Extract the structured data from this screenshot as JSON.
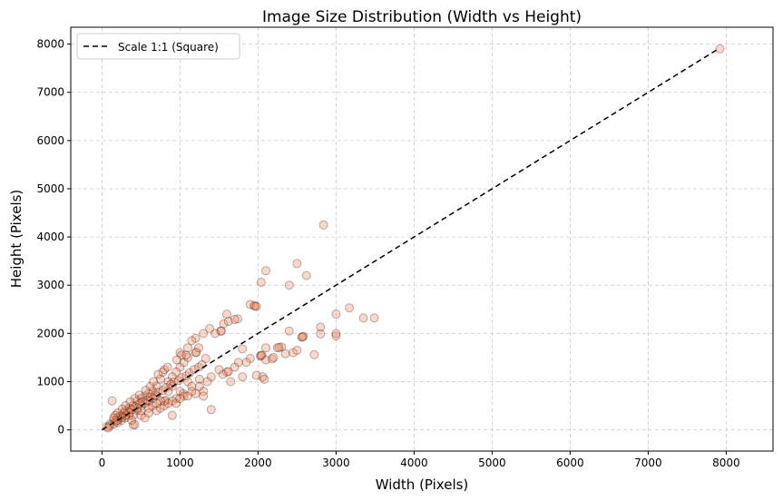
{
  "chart_data": {
    "type": "scatter",
    "title": "Image Size Distribution (Width vs Height)",
    "xlabel": "Width (Pixels)",
    "ylabel": "Height (Pixels)",
    "xlim": [
      -400,
      8600
    ],
    "ylim": [
      -440,
      8350
    ],
    "xticks": [
      0,
      1000,
      2000,
      3000,
      4000,
      5000,
      6000,
      7000,
      8000
    ],
    "yticks": [
      0,
      1000,
      2000,
      3000,
      4000,
      5000,
      6000,
      7000,
      8000
    ],
    "grid": true,
    "legend": {
      "placement": "top-left",
      "entries": [
        "Scale 1:1 (Square)"
      ]
    },
    "reference_line": {
      "name": "Scale 1:1 (Square)",
      "x": [
        0,
        7900
      ],
      "y": [
        0,
        7900
      ],
      "style": "dashed",
      "color": "#000000"
    },
    "point_color": "#FF7F50",
    "point_edge_color": "#000000",
    "point_alpha": 0.3,
    "points": [
      [
        7920,
        7900
      ],
      [
        2840,
        4250
      ],
      [
        2500,
        3450
      ],
      [
        2100,
        3300
      ],
      [
        2620,
        3200
      ],
      [
        2040,
        3060
      ],
      [
        2400,
        3000
      ],
      [
        1950,
        2580
      ],
      [
        1900,
        2600
      ],
      [
        1980,
        2560
      ],
      [
        1960,
        2560
      ],
      [
        1600,
        2400
      ],
      [
        1740,
        2300
      ],
      [
        1700,
        2290
      ],
      [
        1560,
        2200
      ],
      [
        1520,
        2050
      ],
      [
        1530,
        2050
      ],
      [
        1620,
        2250
      ],
      [
        3000,
        2400
      ],
      [
        3170,
        2530
      ],
      [
        3350,
        2320
      ],
      [
        3490,
        2320
      ],
      [
        2800,
        2130
      ],
      [
        2800,
        1990
      ],
      [
        3000,
        1950
      ],
      [
        3000,
        2000
      ],
      [
        2580,
        1940
      ],
      [
        2560,
        1920
      ],
      [
        2570,
        1930
      ],
      [
        2400,
        2050
      ],
      [
        2720,
        1560
      ],
      [
        2100,
        1700
      ],
      [
        2300,
        1720
      ],
      [
        2250,
        1700
      ],
      [
        2270,
        1710
      ],
      [
        2030,
        1530
      ],
      [
        2050,
        1550
      ],
      [
        2040,
        1540
      ],
      [
        2100,
        1450
      ],
      [
        2180,
        1470
      ],
      [
        2060,
        1100
      ],
      [
        2080,
        1050
      ],
      [
        1980,
        1130
      ],
      [
        2450,
        1600
      ],
      [
        2500,
        1650
      ],
      [
        2350,
        1580
      ],
      [
        2200,
        1500
      ],
      [
        1900,
        1480
      ],
      [
        1800,
        1680
      ],
      [
        1850,
        1400
      ],
      [
        1750,
        1400
      ],
      [
        1400,
        420
      ],
      [
        900,
        300
      ],
      [
        1200,
        1600
      ],
      [
        1210,
        1610
      ],
      [
        1250,
        1050
      ],
      [
        1330,
        1480
      ],
      [
        1040,
        750
      ],
      [
        1000,
        1600
      ],
      [
        1100,
        1700
      ],
      [
        1200,
        1900
      ],
      [
        1300,
        2000
      ],
      [
        1380,
        2100
      ],
      [
        1150,
        1850
      ],
      [
        1450,
        2000
      ],
      [
        1600,
        1200
      ],
      [
        1620,
        1210
      ],
      [
        1500,
        1250
      ],
      [
        1400,
        1100
      ],
      [
        1700,
        1300
      ],
      [
        1650,
        1000
      ],
      [
        1800,
        1100
      ],
      [
        1550,
        1150
      ],
      [
        1300,
        800
      ],
      [
        1250,
        900
      ],
      [
        1350,
        1000
      ],
      [
        1000,
        1300
      ],
      [
        1050,
        1400
      ],
      [
        1100,
        1500
      ],
      [
        950,
        1200
      ],
      [
        900,
        1100
      ],
      [
        850,
        1000
      ],
      [
        800,
        1250
      ],
      [
        750,
        1050
      ],
      [
        1100,
        1000
      ],
      [
        1150,
        900
      ],
      [
        1000,
        800
      ],
      [
        1050,
        700
      ],
      [
        950,
        650
      ],
      [
        900,
        900
      ],
      [
        850,
        800
      ],
      [
        800,
        600
      ],
      [
        820,
        610
      ],
      [
        700,
        900
      ],
      [
        650,
        800
      ],
      [
        600,
        750
      ],
      [
        700,
        700
      ],
      [
        750,
        600
      ],
      [
        650,
        500
      ],
      [
        600,
        450
      ],
      [
        550,
        700
      ],
      [
        500,
        650
      ],
      [
        500,
        500
      ],
      [
        450,
        600
      ],
      [
        400,
        500
      ],
      [
        450,
        400
      ],
      [
        400,
        300
      ],
      [
        350,
        450
      ],
      [
        350,
        300
      ],
      [
        300,
        400
      ],
      [
        300,
        250
      ],
      [
        250,
        300
      ],
      [
        250,
        200
      ],
      [
        200,
        250
      ],
      [
        200,
        150
      ],
      [
        150,
        200
      ],
      [
        150,
        120
      ],
      [
        100,
        120
      ],
      [
        100,
        80
      ],
      [
        60,
        60
      ],
      [
        80,
        40
      ],
      [
        400,
        100
      ],
      [
        420,
        110
      ],
      [
        380,
        200
      ],
      [
        500,
        300
      ],
      [
        550,
        250
      ],
      [
        600,
        350
      ],
      [
        700,
        400
      ],
      [
        750,
        450
      ],
      [
        800,
        500
      ],
      [
        850,
        550
      ],
      [
        900,
        600
      ],
      [
        950,
        550
      ],
      [
        1000,
        650
      ],
      [
        1100,
        700
      ],
      [
        1200,
        750
      ],
      [
        1150,
        800
      ],
      [
        1300,
        700
      ],
      [
        600,
        600
      ],
      [
        650,
        650
      ],
      [
        700,
        550
      ],
      [
        550,
        550
      ],
      [
        500,
        400
      ],
      [
        450,
        450
      ],
      [
        350,
        350
      ],
      [
        300,
        300
      ],
      [
        250,
        250
      ],
      [
        200,
        200
      ],
      [
        180,
        180
      ],
      [
        230,
        280
      ],
      [
        280,
        350
      ],
      [
        330,
        380
      ],
      [
        380,
        420
      ],
      [
        420,
        480
      ],
      [
        480,
        540
      ],
      [
        520,
        580
      ],
      [
        580,
        620
      ],
      [
        620,
        680
      ],
      [
        680,
        720
      ],
      [
        720,
        780
      ],
      [
        780,
        820
      ],
      [
        820,
        880
      ],
      [
        880,
        940
      ],
      [
        920,
        990
      ],
      [
        980,
        1020
      ],
      [
        1020,
        1080
      ],
      [
        1080,
        1120
      ],
      [
        1120,
        1180
      ],
      [
        1180,
        1250
      ],
      [
        1240,
        1300
      ],
      [
        1280,
        1350
      ],
      [
        620,
        900
      ],
      [
        560,
        820
      ],
      [
        480,
        720
      ],
      [
        420,
        650
      ],
      [
        360,
        580
      ],
      [
        300,
        500
      ],
      [
        260,
        430
      ],
      [
        200,
        350
      ],
      [
        170,
        300
      ],
      [
        150,
        250
      ],
      [
        130,
        600
      ],
      [
        660,
        1000
      ],
      [
        720,
        1150
      ],
      [
        780,
        1200
      ],
      [
        840,
        1300
      ],
      [
        1020,
        1550
      ],
      [
        1080,
        1550
      ],
      [
        960,
        1450
      ],
      [
        1240,
        1700
      ]
    ]
  }
}
